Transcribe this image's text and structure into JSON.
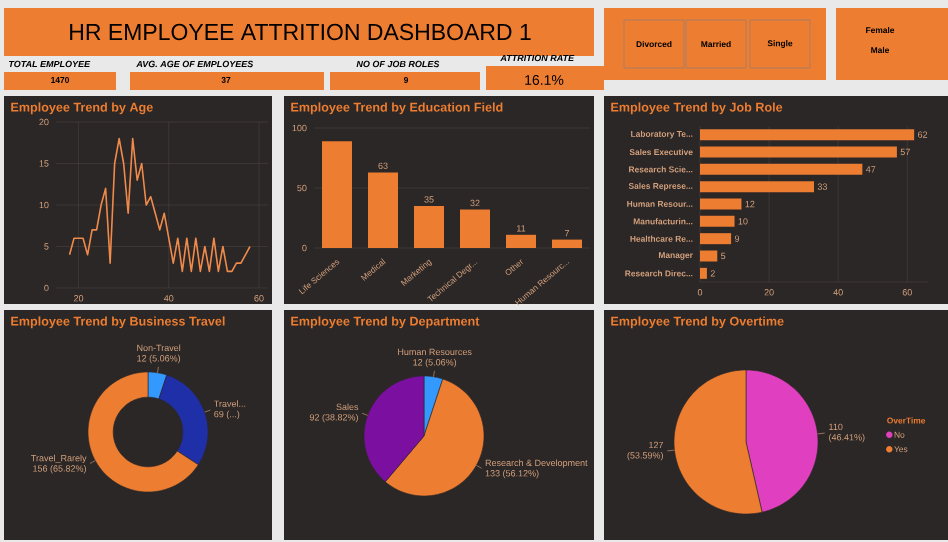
{
  "chart_data": [
    {
      "type": "other",
      "title": "HR EMPLOYEE ATTRITION DASHBOARD 1",
      "annotations": [
        "TOTAL EMPLOYEE",
        "1470",
        "AVG. AGE OF EMPLOYEES",
        "37",
        "NO OF JOB ROLES",
        "9",
        "ATTRITION RATE",
        "16.1%",
        "Divorced",
        "Married",
        "Single",
        "Female",
        "Male"
      ]
    },
    {
      "type": "line",
      "title": "Employee Trend by Age",
      "x": [
        18,
        19,
        20,
        21,
        22,
        23,
        24,
        25,
        26,
        27,
        28,
        29,
        30,
        31,
        32,
        33,
        34,
        35,
        36,
        37,
        38,
        39,
        40,
        41,
        42,
        43,
        44,
        45,
        46,
        47,
        48,
        49,
        50,
        51,
        52,
        53,
        54,
        55,
        56,
        57,
        58
      ],
      "values": [
        4,
        6,
        6,
        6,
        4,
        7,
        7,
        10,
        12,
        3,
        15,
        18,
        15,
        9,
        18,
        13,
        15,
        10,
        11,
        9,
        7,
        9,
        6,
        3,
        6,
        2,
        6,
        2,
        6,
        2,
        5,
        2,
        6,
        2,
        5,
        2,
        2,
        3,
        3,
        4,
        5
      ],
      "color": "#f08a4b",
      "xlim": [
        15,
        62
      ],
      "ylim": [
        0,
        20
      ],
      "xticks": [
        20,
        40,
        60
      ],
      "yticks": [
        0,
        5,
        10,
        15,
        20
      ],
      "grid": true
    },
    {
      "type": "bar",
      "title": "Employee Trend by Education Field",
      "categories": [
        "Life Sciences",
        "Medical",
        "Marketing",
        "Technical Degr...",
        "Other",
        "Human Resourc..."
      ],
      "values": [
        89,
        63,
        35,
        32,
        11,
        7
      ],
      "value_labels": [
        null,
        "63",
        "35",
        "32",
        "11",
        "7"
      ],
      "color": "#ed7d31",
      "ylim": [
        0,
        100
      ],
      "yticks": [
        0,
        50,
        100
      ],
      "grid": "y"
    },
    {
      "type": "bar",
      "orientation": "horizontal",
      "title": "Employee Trend by Job Role",
      "categories": [
        "Laboratory Te...",
        "Sales Executive",
        "Research Scie...",
        "Sales Represe...",
        "Human Resour...",
        "Manufacturin...",
        "Healthcare Re...",
        "Manager",
        "Research Direc..."
      ],
      "values": [
        62,
        57,
        47,
        33,
        12,
        10,
        9,
        5,
        2
      ],
      "data_labels": true,
      "color": "#ed7d31",
      "xlim": [
        0,
        66
      ],
      "xticks": [
        0,
        20,
        40,
        60
      ],
      "grid": "x"
    },
    {
      "type": "donut",
      "title": "Employee Trend by Business Travel",
      "categories": [
        "Non-Travel",
        "Travel...",
        "Travel_Rarely"
      ],
      "values": [
        12,
        69,
        156
      ],
      "value_labels": [
        "12 (5.06%)",
        "69 (...)",
        "156 (65.82%)"
      ],
      "colors": [
        "#3399ff",
        "#1f2fa8",
        "#ed7d31"
      ]
    },
    {
      "type": "pie",
      "title": "Employee Trend by Department",
      "categories": [
        "Human Resources",
        "Research & Development",
        "Sales"
      ],
      "values": [
        12,
        133,
        92
      ],
      "value_labels": [
        "12 (5.06%)",
        "133 (56.12%)",
        "92 (38.82%)"
      ],
      "colors": [
        "#3399ff",
        "#ed7d31",
        "#7a0fa0"
      ]
    },
    {
      "type": "pie",
      "title": "Employee Trend by Overtime",
      "legend_title": "OverTime",
      "legend": "right",
      "categories": [
        "No",
        "Yes"
      ],
      "values": [
        110,
        127
      ],
      "value_labels": [
        "110 (46.41%)",
        "127 (53.59%)"
      ],
      "colors": [
        "#e040c0",
        "#ed7d31"
      ]
    }
  ]
}
